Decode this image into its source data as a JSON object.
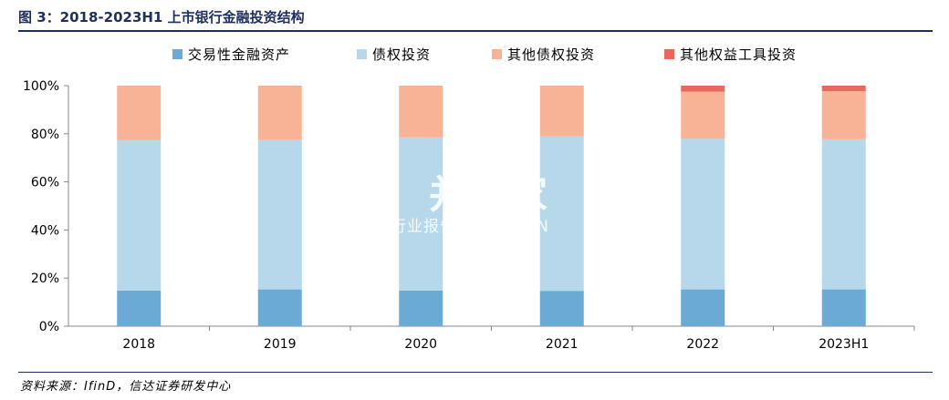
{
  "title": "图 3：2018-2023H1 上市银行金融投资结构",
  "source": "资料来源：IfinD，信达证券研发中心",
  "watermark": {
    "main": "并购家",
    "sub": "行业报告 IPOIPO.CN"
  },
  "chart_data": {
    "type": "bar",
    "stacked": true,
    "categories": [
      "2018",
      "2019",
      "2020",
      "2021",
      "2022",
      "2023H1"
    ],
    "series": [
      {
        "name": "交易性金融资产",
        "color": "#6aaad4",
        "values": [
          14.8,
          15.3,
          14.8,
          14.7,
          15.3,
          15.3
        ]
      },
      {
        "name": "债权投资",
        "color": "#b6d8ea",
        "values": [
          62.5,
          62.1,
          63.7,
          64.2,
          62.6,
          62.4
        ]
      },
      {
        "name": "其他债权投资",
        "color": "#f8b396",
        "values": [
          22.7,
          22.6,
          21.5,
          21.1,
          19.6,
          20.0
        ]
      },
      {
        "name": "其他权益工具投资",
        "color": "#e8695c",
        "values": [
          0.0,
          0.0,
          0.0,
          0.0,
          2.5,
          2.3
        ]
      }
    ],
    "ylim": [
      0,
      100
    ],
    "yticks": [
      "0%",
      "20%",
      "40%",
      "60%",
      "80%",
      "100%"
    ],
    "grid": false,
    "legend_position": "top"
  }
}
